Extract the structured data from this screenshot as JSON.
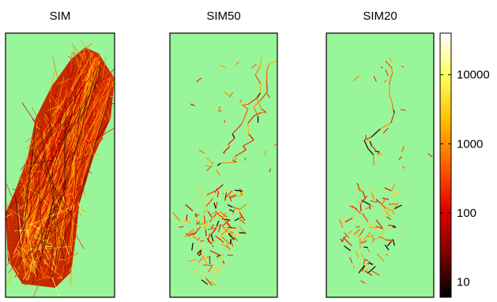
{
  "panels": [
    {
      "id": "sim",
      "title": "SIM"
    },
    {
      "id": "sim50",
      "title": "SIM50"
    },
    {
      "id": "sim20",
      "title": "SIM20"
    }
  ],
  "colors": {
    "background": "#99f599",
    "frame": "#000000",
    "colormap": "hot",
    "colormap_stops": [
      "#000000",
      "#800000",
      "#e00000",
      "#ff6000",
      "#ffc000",
      "#ffff60",
      "#ffffff"
    ]
  },
  "colorbar": {
    "scale": "log",
    "range": [
      6,
      40000
    ],
    "ticks": [
      {
        "value": 10,
        "label": "10"
      },
      {
        "value": 100,
        "label": "100"
      },
      {
        "value": 1000,
        "label": "1000"
      },
      {
        "value": 10000,
        "label": "10000"
      }
    ]
  }
}
